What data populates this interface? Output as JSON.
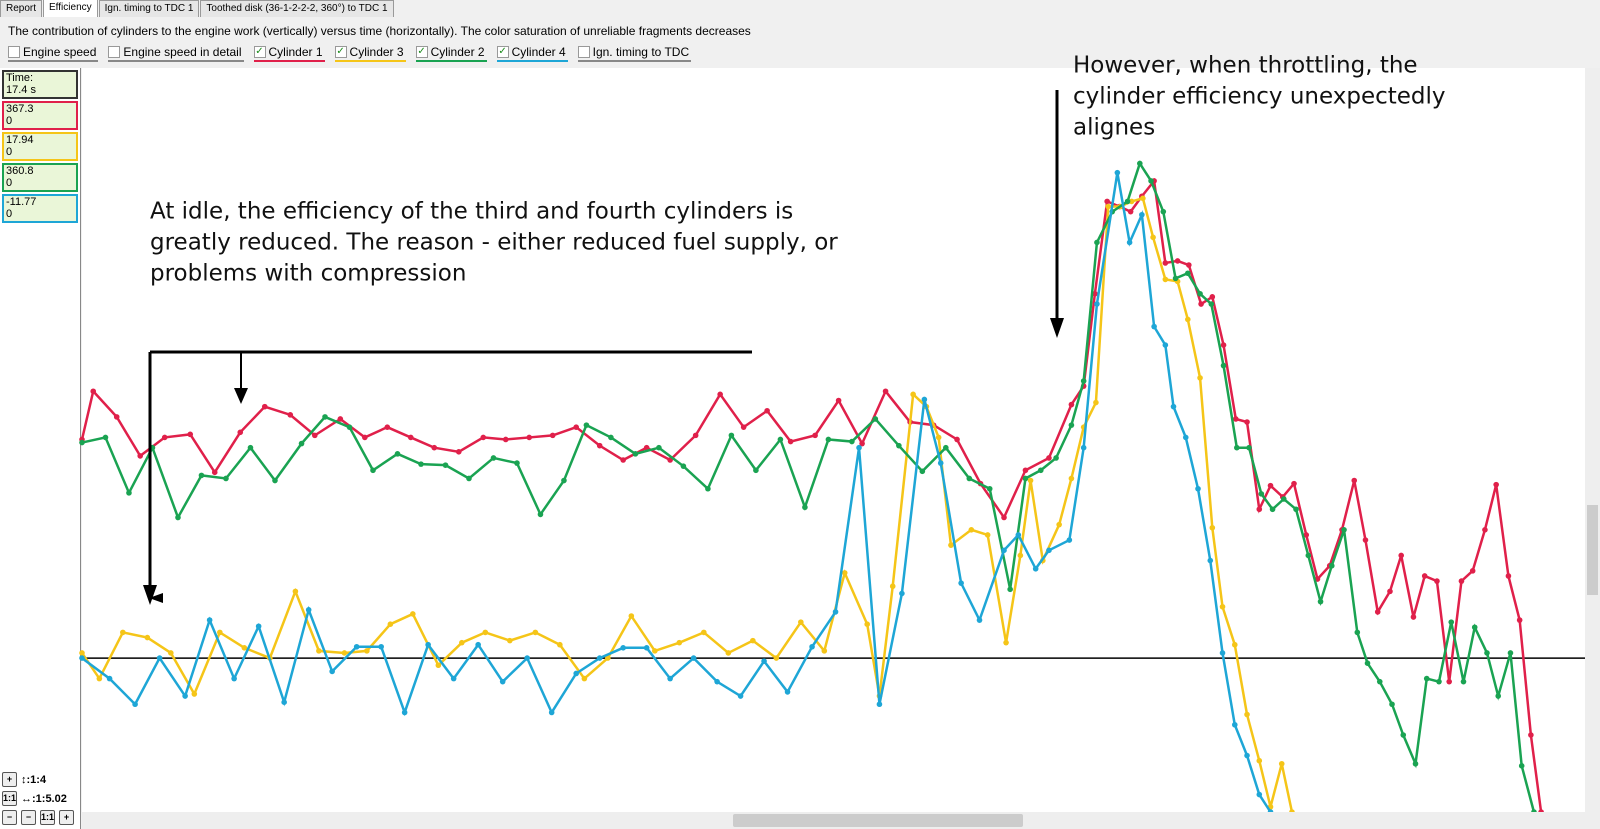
{
  "tabs": [
    "Report",
    "Efficiency",
    "Ign. timing to TDC 1",
    "Toothed disk (36-1-2-2-2, 360°) to TDC 1"
  ],
  "description": "The contribution of cylinders to the engine work (vertically) versus time (horizontally). The color saturation of unreliable fragments decreases",
  "readouts": {
    "time_label": "Time:",
    "time": "17.4 s",
    "values": [
      [
        "367.3",
        "0"
      ],
      [
        "17.94",
        "0"
      ],
      [
        "360.8",
        "0"
      ],
      [
        "-11.77",
        "0"
      ]
    ]
  },
  "zoom": {
    "vertical": "↕:1:4",
    "horizontal": "↔:1:5.02",
    "reset": "1:1"
  },
  "annotations": [
    [
      "At idle, the efficiency of the third and fourth cylinders is",
      "greatly reduced. The reason - either reduced fuel supply, or",
      "problems with compression"
    ],
    [
      "However, when throttling, the",
      "cylinder efficiency unexpectedly",
      "alignes"
    ]
  ],
  "chart_data": {
    "type": "line",
    "legend_extra": [
      "Engine speed",
      "Engine speed in detail",
      "Ign. timing to TDC"
    ],
    "xlim": [
      0,
      1472
    ],
    "ylim": [
      -150,
      575
    ],
    "series": [
      {
        "name": "Cylinder 1",
        "color": "#e0204a",
        "x": [
          0,
          11,
          34,
          57,
          81,
          106,
          130,
          155,
          179,
          204,
          228,
          253,
          277,
          299,
          322,
          345,
          369,
          393,
          415,
          438,
          461,
          484,
          507,
          530,
          553,
          576,
          601,
          625,
          648,
          671,
          694,
          718,
          741,
          764,
          787,
          811,
          834,
          857,
          880,
          903,
          924,
          947,
          969,
          981,
          992,
          1004,
          1016,
          1027,
          1038,
          1050,
          1061,
          1073,
          1084,
          1096,
          1107,
          1118,
          1130,
          1141,
          1153,
          1164,
          1176,
          1187,
          1199,
          1210,
          1222,
          1234,
          1246,
          1257,
          1269,
          1281,
          1292,
          1304,
          1315,
          1327,
          1339,
          1351,
          1362,
          1374,
          1385,
          1397,
          1408,
          1419,
          1429
        ],
        "values": [
          213,
          260,
          235,
          197,
          215,
          218,
          181,
          220,
          245,
          237,
          217,
          233,
          215,
          225,
          215,
          205,
          201,
          215,
          213,
          215,
          217,
          225,
          207,
          193,
          205,
          193,
          217,
          257,
          225,
          241,
          211,
          217,
          251,
          209,
          260,
          230,
          227,
          213,
          170,
          137,
          183,
          195,
          247,
          265,
          355,
          445,
          440,
          435,
          450,
          465,
          385,
          387,
          383,
          345,
          352,
          305,
          233,
          230,
          145,
          168,
          157,
          170,
          120,
          77,
          90,
          125,
          173,
          115,
          45,
          65,
          100,
          40,
          80,
          75,
          -23,
          75,
          85,
          125,
          169,
          80,
          37,
          -75,
          -150
        ]
      },
      {
        "name": "Cylinder 3",
        "color": "#f5c518",
        "x": [
          0,
          17,
          40,
          64,
          87,
          110,
          135,
          159,
          184,
          209,
          232,
          257,
          279,
          302,
          324,
          349,
          372,
          395,
          419,
          444,
          468,
          492,
          515,
          538,
          561,
          585,
          609,
          633,
          657,
          680,
          704,
          727,
          747,
          769,
          781,
          794,
          814,
          827,
          839,
          851,
          871,
          887,
          905,
          919,
          929,
          941,
          957,
          969,
          981,
          993,
          1005,
          1017,
          1028,
          1039,
          1049,
          1061,
          1073,
          1083,
          1095,
          1107,
          1117,
          1129,
          1141,
          1153,
          1164,
          1175,
          1185
        ],
        "values": [
          5,
          -20,
          25,
          20,
          5,
          -35,
          25,
          10,
          0,
          65,
          7,
          5,
          7,
          33,
          43,
          -7,
          15,
          25,
          17,
          25,
          13,
          -20,
          0,
          41,
          7,
          15,
          25,
          5,
          17,
          0,
          35,
          7,
          83,
          33,
          -37,
          70,
          257,
          245,
          215,
          110,
          125,
          120,
          15,
          100,
          173,
          95,
          130,
          175,
          225,
          249,
          440,
          440,
          445,
          448,
          410,
          369,
          367,
          330,
          273,
          127,
          50,
          13,
          -55,
          -100,
          -145,
          -103,
          -150
        ]
      },
      {
        "name": "Cylinder 2",
        "color": "#1aa352",
        "x": [
          0,
          23,
          46,
          69,
          94,
          117,
          141,
          165,
          189,
          215,
          238,
          262,
          285,
          309,
          332,
          356,
          379,
          403,
          426,
          449,
          472,
          494,
          518,
          542,
          565,
          589,
          613,
          636,
          660,
          684,
          708,
          731,
          754,
          777,
          800,
          823,
          846,
          869,
          889,
          909,
          924,
          939,
          954,
          969,
          981,
          994,
          1009,
          1024,
          1036,
          1047,
          1059,
          1071,
          1083,
          1095,
          1106,
          1118,
          1131,
          1143,
          1155,
          1166,
          1177,
          1189,
          1201,
          1213,
          1224,
          1236,
          1249,
          1259,
          1271,
          1283,
          1294,
          1306,
          1317,
          1329,
          1341,
          1353,
          1364,
          1376,
          1387,
          1399,
          1410,
          1422
        ],
        "values": [
          210,
          215,
          161,
          205,
          137,
          178,
          175,
          205,
          173,
          209,
          235,
          225,
          183,
          199,
          189,
          188,
          175,
          195,
          190,
          140,
          173,
          227,
          215,
          199,
          205,
          187,
          165,
          217,
          183,
          213,
          147,
          213,
          211,
          233,
          207,
          182,
          205,
          175,
          165,
          67,
          175,
          183,
          195,
          227,
          270,
          405,
          435,
          445,
          482,
          465,
          435,
          370,
          375,
          355,
          345,
          285,
          205,
          205,
          160,
          145,
          155,
          145,
          100,
          55,
          90,
          125,
          25,
          -5,
          -23,
          -45,
          -75,
          -103,
          -20,
          -23,
          35,
          -23,
          30,
          5,
          -37,
          5,
          -105,
          -150
        ]
      },
      {
        "name": "Cylinder 4",
        "color": "#1ea6d6",
        "x": [
          0,
          27,
          52,
          76,
          101,
          125,
          149,
          173,
          198,
          222,
          245,
          269,
          293,
          316,
          339,
          364,
          388,
          412,
          436,
          460,
          484,
          507,
          530,
          553,
          576,
          599,
          622,
          645,
          668,
          691,
          715,
          738,
          761,
          781,
          803,
          825,
          841,
          861,
          879,
          903,
          917,
          934,
          947,
          967,
          981,
          994,
          1014,
          1026,
          1038,
          1050,
          1061,
          1069,
          1081,
          1093,
          1105,
          1117,
          1129,
          1141,
          1153,
          1164
        ],
        "values": [
          0,
          -20,
          -45,
          0,
          -37,
          37,
          -20,
          31,
          -43,
          47,
          -13,
          11,
          11,
          -53,
          13,
          -20,
          13,
          -23,
          0,
          -53,
          -15,
          0,
          10,
          10,
          -20,
          0,
          -23,
          -37,
          -3,
          -33,
          11,
          45,
          205,
          -45,
          63,
          252,
          190,
          73,
          37,
          105,
          120,
          87,
          105,
          115,
          205,
          345,
          473,
          405,
          432,
          323,
          305,
          245,
          215,
          165,
          95,
          5,
          -65,
          -95,
          -133,
          -150
        ]
      }
    ]
  }
}
